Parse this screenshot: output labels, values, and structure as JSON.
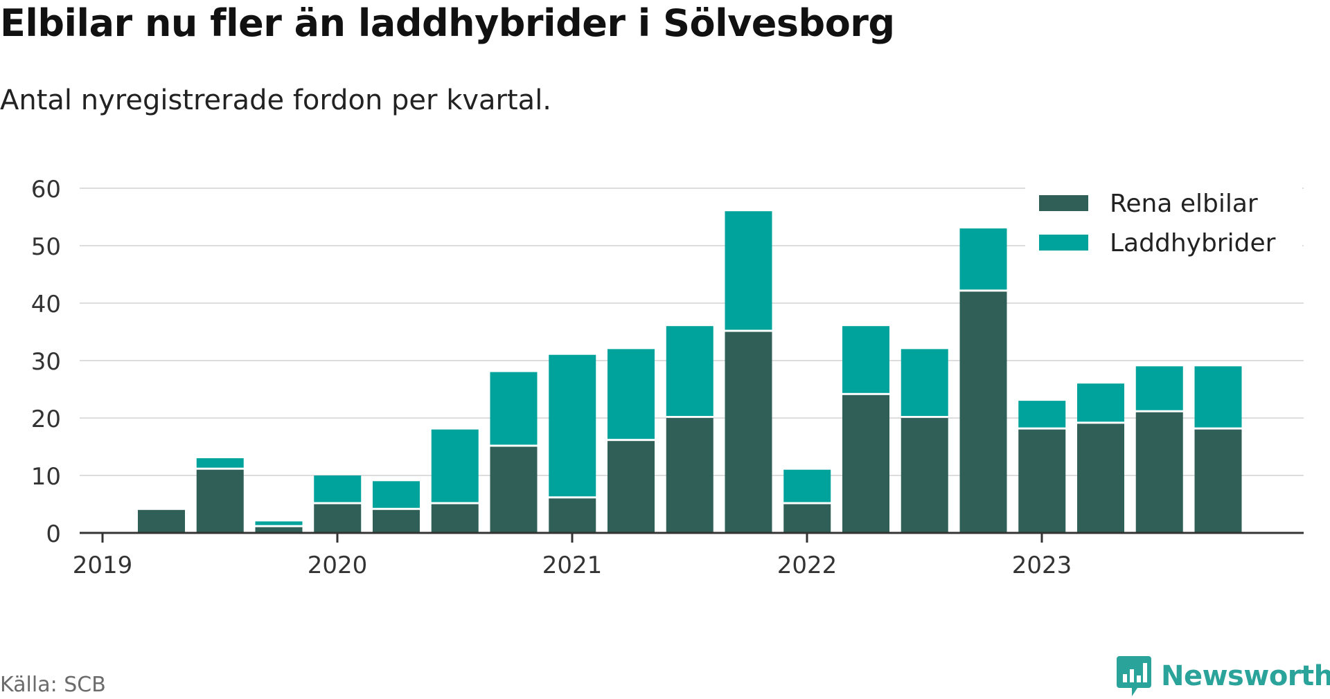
{
  "title": "Elbilar nu fler än laddhybrider i Sölvesborg",
  "subtitle": "Antal nyregistrerade fordon per kvartal.",
  "source": "Källa: SCB",
  "brand": {
    "name": "Newsworthy",
    "icon": "newsworthy-logo-icon",
    "color": "#2aa39a"
  },
  "chart_data": {
    "type": "bar",
    "stacked": true,
    "categories": [
      "2019-Q1",
      "2019-Q2",
      "2019-Q3",
      "2019-Q4",
      "2020-Q1",
      "2020-Q2",
      "2020-Q3",
      "2020-Q4",
      "2021-Q1",
      "2021-Q2",
      "2021-Q3",
      "2021-Q4",
      "2022-Q1",
      "2022-Q2",
      "2022-Q3",
      "2022-Q4",
      "2023-Q1",
      "2023-Q2",
      "2023-Q3",
      "2023-Q4"
    ],
    "x_tick_labels": [
      "2019",
      "2020",
      "2021",
      "2022",
      "2023"
    ],
    "y_ticks": [
      0,
      10,
      20,
      30,
      40,
      50,
      60
    ],
    "ylim": [
      0,
      60
    ],
    "grid": true,
    "legend_position": "top-right",
    "series": [
      {
        "name": "Rena elbilar",
        "color": "#2f5f57",
        "values": [
          0,
          4,
          11,
          1,
          5,
          4,
          5,
          15,
          6,
          16,
          20,
          35,
          5,
          24,
          20,
          42,
          18,
          19,
          21,
          18
        ]
      },
      {
        "name": "Laddhybrider",
        "color": "#00a39b",
        "values": [
          0,
          0,
          2,
          1,
          5,
          5,
          13,
          13,
          25,
          16,
          16,
          21,
          6,
          12,
          12,
          11,
          5,
          7,
          8,
          11
        ]
      }
    ]
  }
}
